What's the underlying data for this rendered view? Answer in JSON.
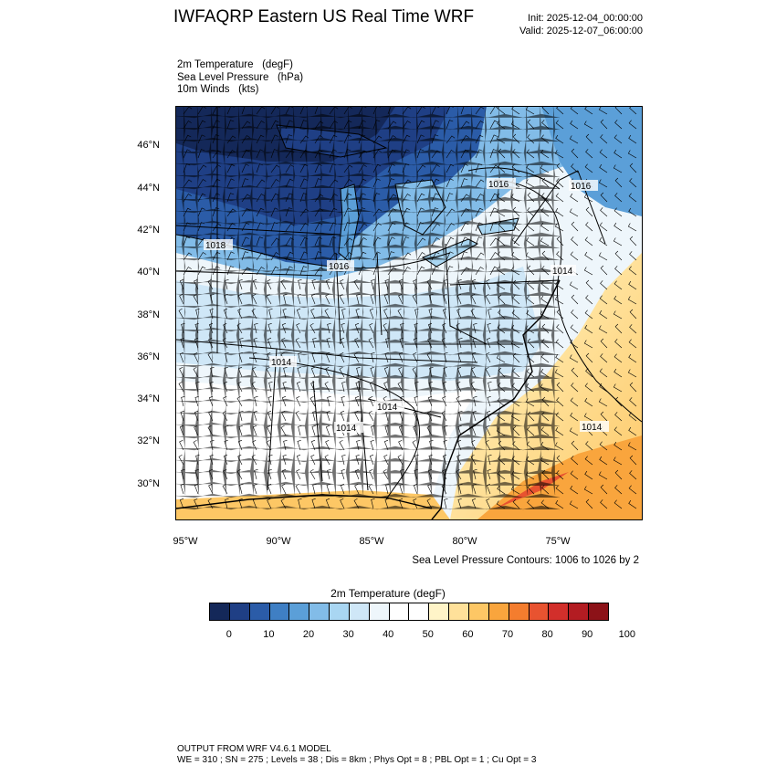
{
  "header": {
    "title": "IWFAQRP Eastern US Real Time WRF",
    "init": "Init: 2025-12-04_00:00:00",
    "valid": "Valid: 2025-12-07_06:00:00"
  },
  "fields": [
    "2m Temperature   (degF)",
    "Sea Level Pressure   (hPa)",
    "10m Winds   (kts)"
  ],
  "map": {
    "lat_labels": [
      "46°N",
      "44°N",
      "42°N",
      "40°N",
      "38°N",
      "36°N",
      "34°N",
      "32°N",
      "30°N"
    ],
    "lon_labels": [
      "95°W",
      "90°W",
      "85°W",
      "80°W",
      "75°W"
    ],
    "slp_labels": [
      "1018",
      "1016",
      "1016",
      "1016",
      "1014",
      "1014",
      "1014",
      "1014",
      "1014"
    ]
  },
  "contour_note": "Sea Level Pressure Contours: 1006 to 1026 by 2",
  "colorbar": {
    "title": "2m Temperature  (degF)",
    "ticks": [
      "0",
      "10",
      "20",
      "30",
      "40",
      "50",
      "60",
      "70",
      "80",
      "90",
      "100"
    ],
    "colors": [
      "#142859",
      "#1f3f85",
      "#2b5ca8",
      "#3f7fc4",
      "#5b9fd8",
      "#82bce8",
      "#a9d6f2",
      "#cfe7f7",
      "#eef6fb",
      "#ffffff",
      "#ffffff",
      "#fff4c8",
      "#ffe19a",
      "#fdc765",
      "#f9a53d",
      "#f47d2e",
      "#e85330",
      "#d22f2b",
      "#b31c22",
      "#8c1218"
    ]
  },
  "footer": {
    "line1": "OUTPUT FROM WRF V4.6.1 MODEL",
    "line2": "WE = 310 ; SN = 275 ; Levels = 38 ; Dis = 8km ; Phys Opt = 8 ; PBL Opt = 1 ; Cu Opt = 3"
  }
}
